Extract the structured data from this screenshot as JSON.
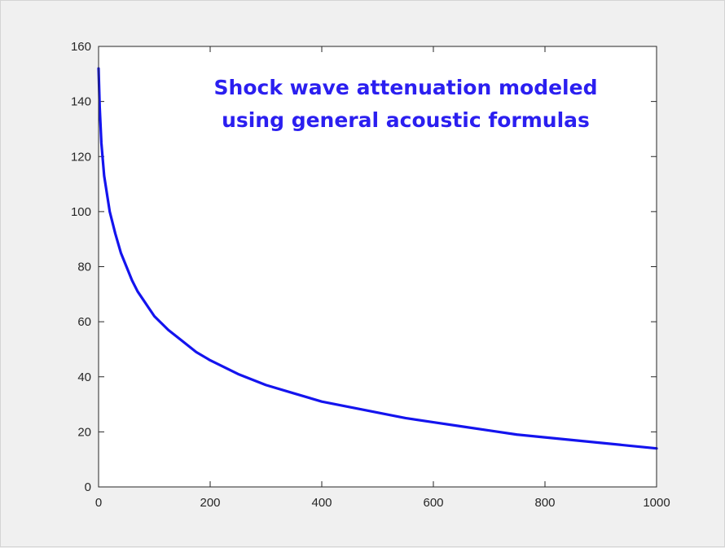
{
  "chart_data": {
    "type": "line",
    "title": "",
    "xlabel": "",
    "ylabel": "",
    "xlim": [
      0,
      1000
    ],
    "ylim": [
      0,
      160
    ],
    "x_ticks": [
      "0",
      "200",
      "400",
      "600",
      "800",
      "1000"
    ],
    "y_ticks": [
      "0",
      "20",
      "40",
      "60",
      "80",
      "100",
      "120",
      "140",
      "160"
    ],
    "grid": false,
    "legend": "none",
    "annotation": {
      "lines": [
        "Shock wave attenuation modeled",
        "using general acoustic formulas"
      ],
      "color": "#2b1ff0"
    },
    "series": [
      {
        "color": "#1414ee",
        "x": [
          0,
          2,
          5,
          10,
          20,
          30,
          40,
          50,
          60,
          70,
          80,
          90,
          100,
          125,
          150,
          175,
          200,
          250,
          300,
          350,
          400,
          450,
          500,
          550,
          600,
          650,
          700,
          750,
          800,
          850,
          900,
          950,
          1000
        ],
        "y": [
          152,
          138,
          125,
          113,
          100,
          92,
          85,
          80,
          75,
          71,
          68,
          65,
          62,
          57,
          53,
          49,
          46,
          41,
          37,
          34,
          31,
          29,
          27,
          25,
          23.5,
          22,
          20.5,
          19,
          18,
          17,
          16,
          15,
          14
        ]
      }
    ]
  }
}
